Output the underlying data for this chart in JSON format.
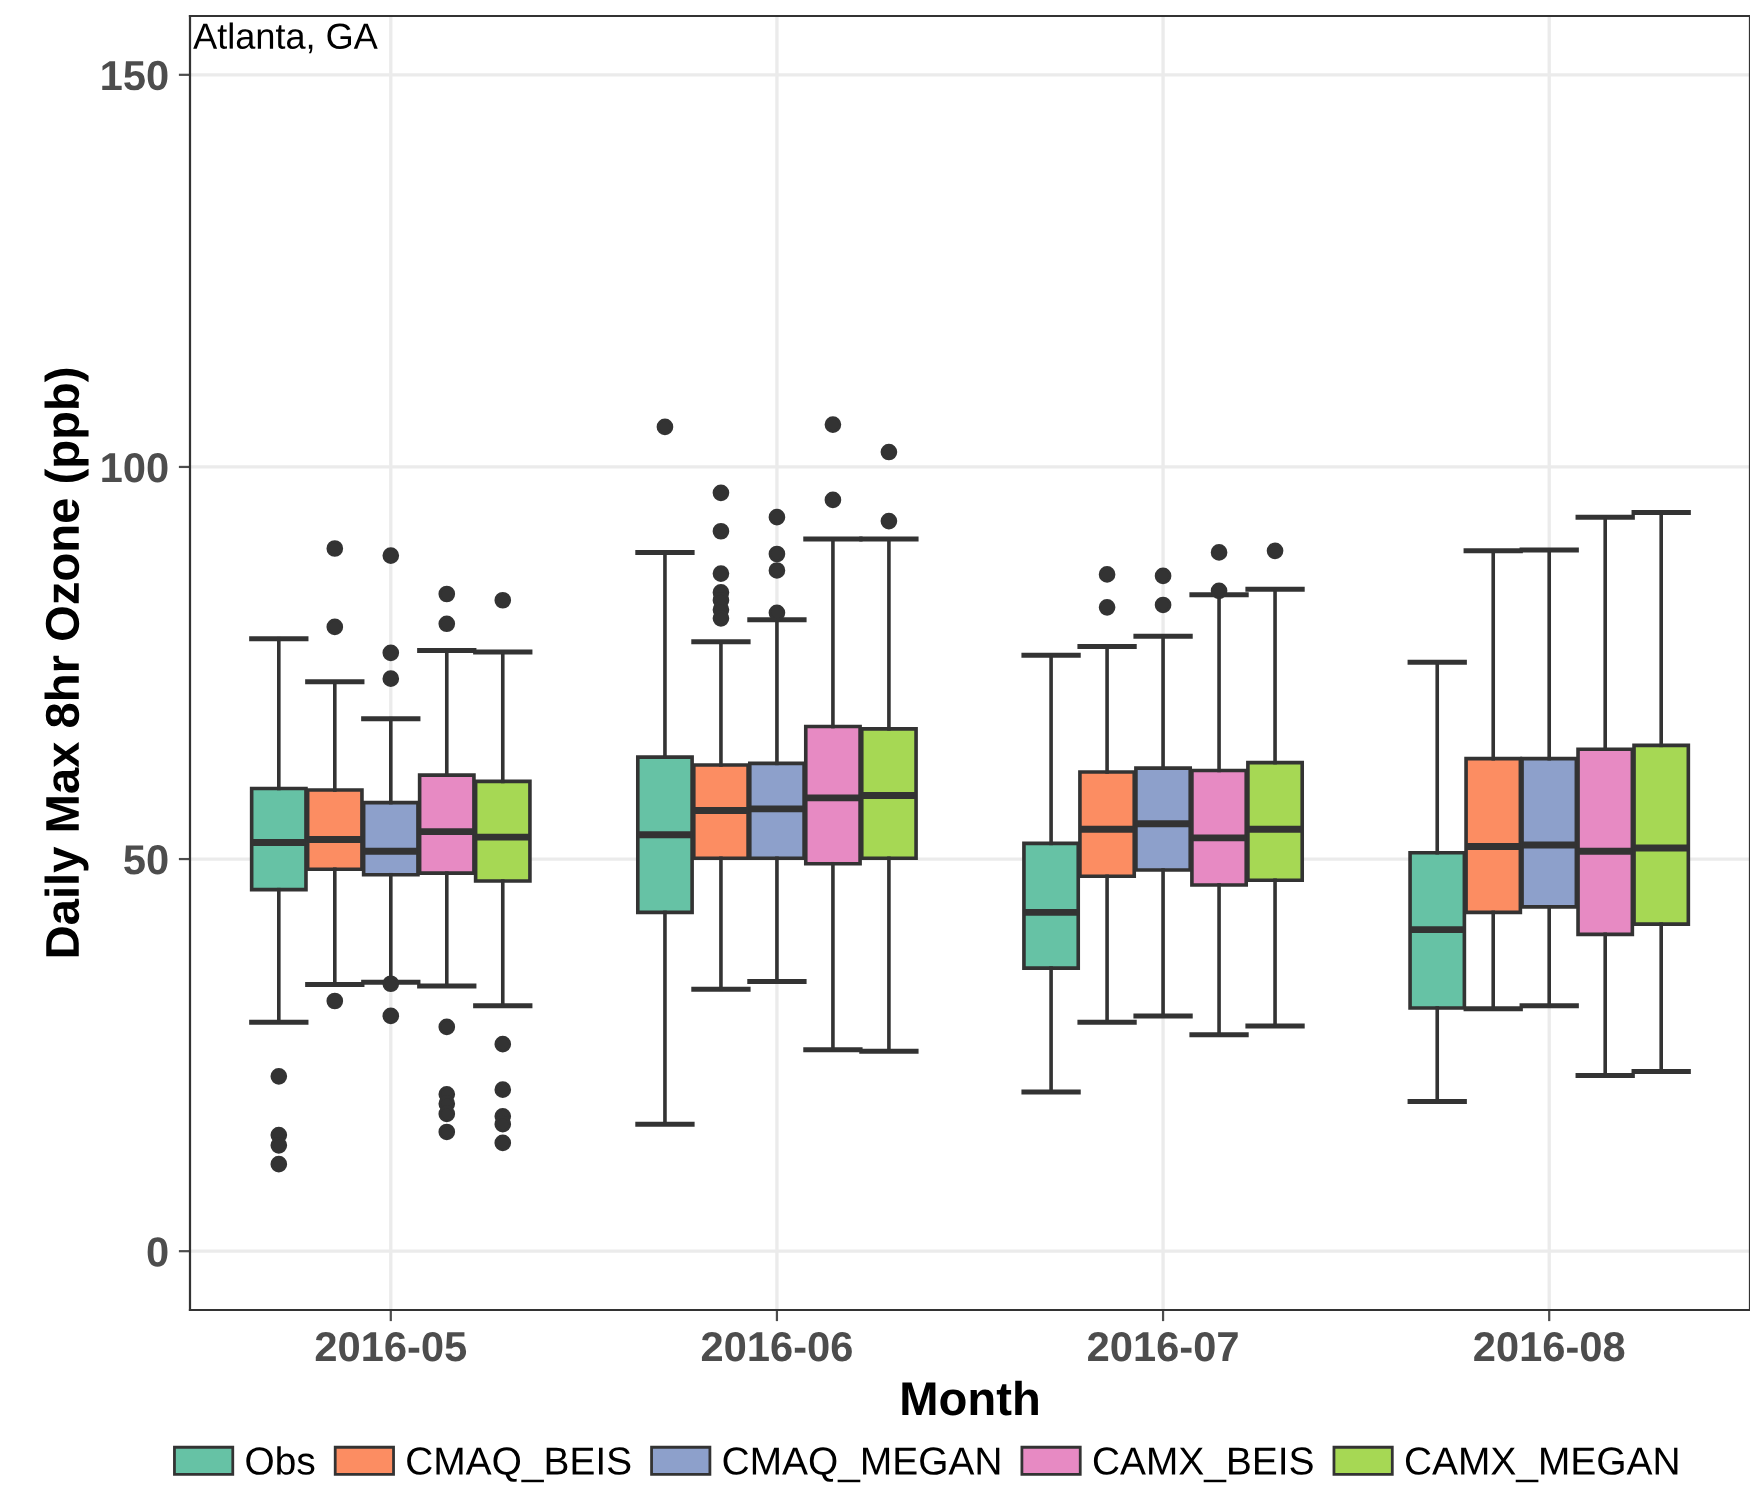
{
  "chart_data": {
    "type": "box",
    "xlabel": "Month",
    "ylabel": "Daily Max 8hr Ozone (ppb)",
    "annotations": [
      "Atlanta, GA"
    ],
    "categories": [
      "2016-05",
      "2016-06",
      "2016-07",
      "2016-08"
    ],
    "ylim": [
      -7.5,
      157.5
    ],
    "yticks": [
      0,
      50,
      100,
      150
    ],
    "grid": true,
    "legend": "bottom",
    "series": [
      {
        "name": "Obs",
        "color": "#66c2a5",
        "boxes": [
          {
            "low": 29.2,
            "q1": 46.1,
            "median": 52.1,
            "q3": 59.0,
            "high": 78.1,
            "outliers": [
              22.3,
              14.8,
              13.5,
              11.1
            ]
          },
          {
            "low": 16.2,
            "q1": 43.2,
            "median": 53.1,
            "q3": 63.0,
            "high": 89.1,
            "outliers": [
              105.1
            ]
          },
          {
            "low": 20.3,
            "q1": 36.1,
            "median": 43.2,
            "q3": 52.0,
            "high": 76.0
          },
          {
            "low": 19.1,
            "q1": 31.0,
            "median": 41.0,
            "q3": 50.8,
            "high": 75.1
          }
        ]
      },
      {
        "name": "CMAQ_BEIS",
        "color": "#fc8d62",
        "boxes": [
          {
            "low": 34.0,
            "q1": 48.7,
            "median": 52.5,
            "q3": 58.8,
            "high": 72.6,
            "outliers": [
              89.6,
              79.6,
              31.9
            ]
          },
          {
            "low": 33.4,
            "q1": 50.1,
            "median": 56.2,
            "q3": 62.0,
            "high": 77.7,
            "outliers": [
              96.7,
              91.8,
              86.4,
              84.0,
              83.0,
              81.8,
              80.7
            ]
          },
          {
            "low": 29.2,
            "q1": 47.8,
            "median": 53.8,
            "q3": 61.1,
            "high": 77.1,
            "outliers": [
              86.3,
              82.1
            ]
          },
          {
            "low": 30.9,
            "q1": 43.2,
            "median": 51.6,
            "q3": 62.8,
            "high": 89.3
          }
        ]
      },
      {
        "name": "CMAQ_MEGAN",
        "color": "#8da0cb",
        "boxes": [
          {
            "low": 34.3,
            "q1": 48.0,
            "median": 51.0,
            "q3": 57.2,
            "high": 67.9,
            "outliers": [
              88.7,
              76.3,
              73.0,
              34.1,
              30.0
            ]
          },
          {
            "low": 34.4,
            "q1": 50.1,
            "median": 56.4,
            "q3": 62.2,
            "high": 80.5,
            "outliers": [
              93.6,
              88.9,
              86.8,
              81.4
            ]
          },
          {
            "low": 30.0,
            "q1": 48.6,
            "median": 54.5,
            "q3": 61.6,
            "high": 78.4,
            "outliers": [
              86.1,
              82.4
            ]
          },
          {
            "low": 31.3,
            "q1": 43.9,
            "median": 51.8,
            "q3": 62.8,
            "high": 89.4
          }
        ]
      },
      {
        "name": "CAMX_BEIS",
        "color": "#e78ac3",
        "boxes": [
          {
            "low": 33.8,
            "q1": 48.2,
            "median": 53.5,
            "q3": 60.7,
            "high": 76.6,
            "outliers": [
              83.8,
              80.0,
              28.6,
              20.0,
              18.8,
              17.5,
              15.2
            ]
          },
          {
            "low": 25.7,
            "q1": 49.4,
            "median": 57.8,
            "q3": 66.9,
            "high": 90.8,
            "outliers": [
              105.4,
              95.8
            ]
          },
          {
            "low": 27.6,
            "q1": 46.7,
            "median": 52.7,
            "q3": 61.3,
            "high": 83.7,
            "outliers": [
              89.1,
              84.2
            ]
          },
          {
            "low": 22.4,
            "q1": 40.4,
            "median": 51.0,
            "q3": 64.0,
            "high": 93.6
          }
        ]
      },
      {
        "name": "CAMX_MEGAN",
        "color": "#a6d854",
        "boxes": [
          {
            "low": 31.3,
            "q1": 47.2,
            "median": 52.8,
            "q3": 59.9,
            "high": 76.4,
            "outliers": [
              83.0,
              26.4,
              20.6,
              17.2,
              16.2,
              13.8
            ]
          },
          {
            "low": 25.5,
            "q1": 50.1,
            "median": 58.1,
            "q3": 66.6,
            "high": 90.8,
            "outliers": [
              101.9,
              93.1
            ]
          },
          {
            "low": 28.7,
            "q1": 47.3,
            "median": 53.8,
            "q3": 62.3,
            "high": 84.4,
            "outliers": [
              89.3
            ]
          },
          {
            "low": 22.9,
            "q1": 41.7,
            "median": 51.4,
            "q3": 64.5,
            "high": 94.2
          }
        ]
      }
    ]
  }
}
